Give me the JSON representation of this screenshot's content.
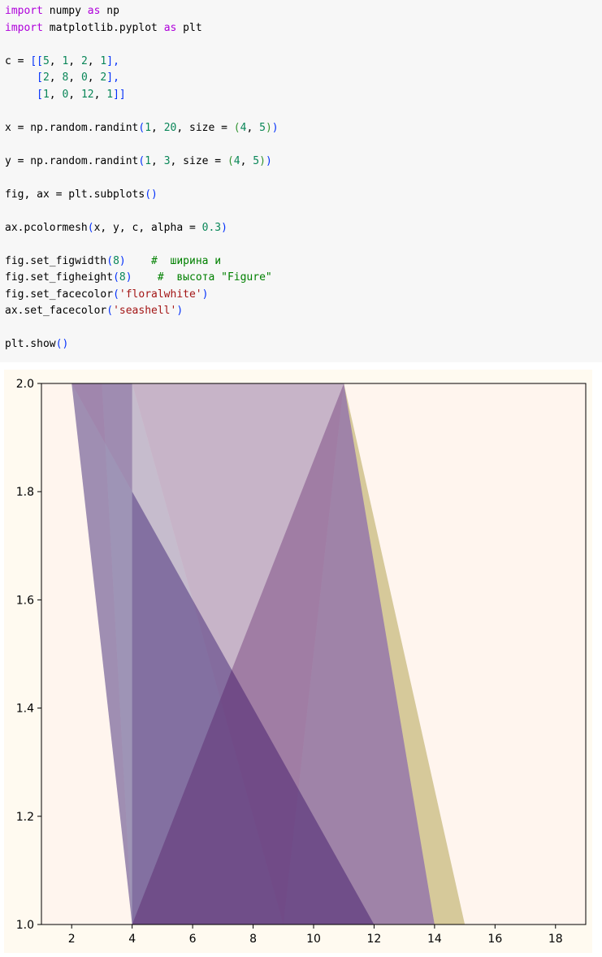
{
  "code_cell": {
    "lines": [
      [
        {
          "t": "import",
          "c": "kw"
        },
        {
          "t": " numpy "
        },
        {
          "t": "as",
          "c": "kw"
        },
        {
          "t": " np"
        }
      ],
      [
        {
          "t": "import",
          "c": "kw"
        },
        {
          "t": " matplotlib.pyplot "
        },
        {
          "t": "as",
          "c": "kw"
        },
        {
          "t": " plt"
        }
      ],
      [],
      [
        {
          "t": "c = "
        },
        {
          "t": "[[",
          "c": "br1"
        },
        {
          "t": "5",
          "c": "num"
        },
        {
          "t": ", "
        },
        {
          "t": "1",
          "c": "num"
        },
        {
          "t": ", "
        },
        {
          "t": "2",
          "c": "num"
        },
        {
          "t": ", "
        },
        {
          "t": "1",
          "c": "num"
        },
        {
          "t": "],",
          "c": "br1"
        }
      ],
      [
        {
          "t": "     "
        },
        {
          "t": "[",
          "c": "br1"
        },
        {
          "t": "2",
          "c": "num"
        },
        {
          "t": ", "
        },
        {
          "t": "8",
          "c": "num"
        },
        {
          "t": ", "
        },
        {
          "t": "0",
          "c": "num"
        },
        {
          "t": ", "
        },
        {
          "t": "2",
          "c": "num"
        },
        {
          "t": "],",
          "c": "br1"
        }
      ],
      [
        {
          "t": "     "
        },
        {
          "t": "[",
          "c": "br1"
        },
        {
          "t": "1",
          "c": "num"
        },
        {
          "t": ", "
        },
        {
          "t": "0",
          "c": "num"
        },
        {
          "t": ", "
        },
        {
          "t": "12",
          "c": "num"
        },
        {
          "t": ", "
        },
        {
          "t": "1",
          "c": "num"
        },
        {
          "t": "]]",
          "c": "br1"
        }
      ],
      [],
      [
        {
          "t": "x = np.random.randint"
        },
        {
          "t": "(",
          "c": "br1"
        },
        {
          "t": "1",
          "c": "num"
        },
        {
          "t": ", "
        },
        {
          "t": "20",
          "c": "num"
        },
        {
          "t": ", size = "
        },
        {
          "t": "(",
          "c": "br2"
        },
        {
          "t": "4",
          "c": "num"
        },
        {
          "t": ", "
        },
        {
          "t": "5",
          "c": "num"
        },
        {
          "t": ")",
          "c": "br2"
        },
        {
          "t": ")",
          "c": "br1"
        }
      ],
      [],
      [
        {
          "t": "y = np.random.randint"
        },
        {
          "t": "(",
          "c": "br1"
        },
        {
          "t": "1",
          "c": "num"
        },
        {
          "t": ", "
        },
        {
          "t": "3",
          "c": "num"
        },
        {
          "t": ", size = "
        },
        {
          "t": "(",
          "c": "br2"
        },
        {
          "t": "4",
          "c": "num"
        },
        {
          "t": ", "
        },
        {
          "t": "5",
          "c": "num"
        },
        {
          "t": ")",
          "c": "br2"
        },
        {
          "t": ")",
          "c": "br1"
        }
      ],
      [],
      [
        {
          "t": "fig, ax = plt.subplots"
        },
        {
          "t": "()",
          "c": "br1"
        }
      ],
      [],
      [
        {
          "t": "ax.pcolormesh"
        },
        {
          "t": "(",
          "c": "br1"
        },
        {
          "t": "x, y, c, alpha = "
        },
        {
          "t": "0.3",
          "c": "num"
        },
        {
          "t": ")",
          "c": "br1"
        }
      ],
      [],
      [
        {
          "t": "fig.set_figwidth"
        },
        {
          "t": "(",
          "c": "br1"
        },
        {
          "t": "8",
          "c": "num"
        },
        {
          "t": ")",
          "c": "br1"
        },
        {
          "t": "    "
        },
        {
          "t": "#  ширина и",
          "c": "cmt"
        }
      ],
      [
        {
          "t": "fig.set_figheight"
        },
        {
          "t": "(",
          "c": "br1"
        },
        {
          "t": "8",
          "c": "num"
        },
        {
          "t": ")",
          "c": "br1"
        },
        {
          "t": "    "
        },
        {
          "t": "#  высота \"Figure\"",
          "c": "cmt"
        }
      ],
      [
        {
          "t": "fig.set_facecolor"
        },
        {
          "t": "(",
          "c": "br1"
        },
        {
          "t": "'floralwhite'",
          "c": "str"
        },
        {
          "t": ")",
          "c": "br1"
        }
      ],
      [
        {
          "t": "ax.set_facecolor"
        },
        {
          "t": "(",
          "c": "br1"
        },
        {
          "t": "'seashell'",
          "c": "str"
        },
        {
          "t": ")",
          "c": "br1"
        }
      ],
      [],
      [
        {
          "t": "plt.show"
        },
        {
          "t": "()",
          "c": "br1"
        }
      ]
    ]
  },
  "colors": {
    "figure_facecolor": "#fffaf0",
    "axes_facecolor": "#fff5ee"
  },
  "chart_data": {
    "type": "pcolormesh",
    "xlim": [
      1,
      19
    ],
    "ylim": [
      1.0,
      2.0
    ],
    "xticks": [
      2,
      4,
      6,
      8,
      10,
      12,
      14,
      16,
      18
    ],
    "yticks": [
      1.0,
      1.2,
      1.4,
      1.6,
      1.8,
      2.0
    ],
    "xtick_labels": [
      "2",
      "4",
      "6",
      "8",
      "10",
      "12",
      "14",
      "16",
      "18"
    ],
    "ytick_labels": [
      "1.0",
      "1.2",
      "1.4",
      "1.6",
      "1.8",
      "2.0"
    ],
    "alpha": 0.3,
    "colormap": "viridis",
    "c": [
      [
        5,
        1,
        2,
        1
      ],
      [
        2,
        8,
        0,
        2
      ],
      [
        1,
        0,
        12,
        1
      ]
    ],
    "x_grid": [
      [
        1,
        2,
        3,
        4,
        19
      ],
      [
        2,
        4,
        4,
        9,
        11
      ],
      [
        2,
        12,
        14,
        15,
        15
      ],
      [
        4,
        4,
        11,
        15,
        19
      ]
    ],
    "y_grid": [
      [
        2,
        2,
        2,
        2,
        2
      ],
      [
        2,
        1,
        1,
        1,
        2
      ],
      [
        2,
        1,
        1,
        1,
        1
      ],
      [
        2,
        1,
        2,
        1,
        1
      ]
    ],
    "grid": false
  }
}
